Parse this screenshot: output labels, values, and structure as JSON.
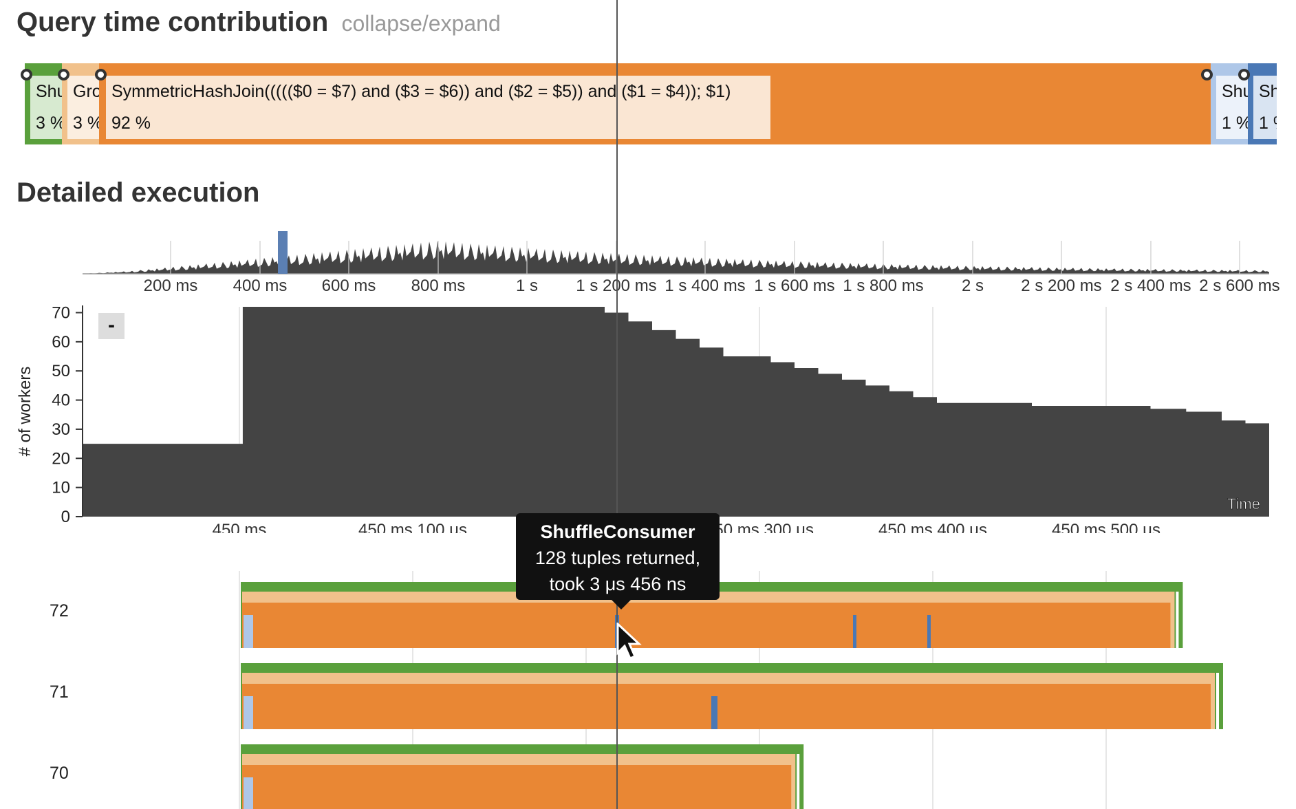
{
  "headings": {
    "contribution": "Query time contribution",
    "toggle": "collapse/expand",
    "detailed": "Detailed execution"
  },
  "contribution": [
    {
      "label": "Shu",
      "pct": "3 %",
      "color": "#5aa03c",
      "bg": "#d7ead0",
      "share": 3
    },
    {
      "label": "Gro",
      "pct": "3 %",
      "color": "#f1c18b",
      "bg": "#fbeee0",
      "share": 3
    },
    {
      "label": "SymmetricHashJoin((((($0 = $7) and ($3 = $6)) and ($2 = $5)) and ($1 = $4)); $1)",
      "pct": "92 %",
      "color": "#e98734",
      "bg": "#fae6d3",
      "share": 92
    },
    {
      "label": "Shu",
      "pct": "1 %",
      "color": "#aec7e8",
      "bg": "#ecf2fa",
      "share": 1
    },
    {
      "label": "Shu",
      "pct": "1 %",
      "color": "#4a78b5",
      "bg": "#d9e4f2",
      "share": 1
    }
  ],
  "overview": {
    "ticks": [
      "200 ms",
      "400 ms",
      "600 ms",
      "800 ms",
      "1 s",
      "1 s 200 ms",
      "1 s 400 ms",
      "1 s 600 ms",
      "1 s 800 ms",
      "2 s",
      "2 s 200 ms",
      "2 s 400 ms",
      "2 s 600 ms"
    ]
  },
  "workers_chart": {
    "ylabel": "# of workers",
    "yticks": [
      "0",
      "10",
      "20",
      "30",
      "40",
      "50",
      "60",
      "70"
    ],
    "xticks": [
      "450 ms",
      "450 ms 100 μs",
      "450 ms 300 μs",
      "450 ms 400 μs",
      "450 ms 500 μs"
    ],
    "corner_label": "Time",
    "collapse_label": "-",
    "step_points": [
      [
        0,
        25
      ],
      [
        0.132,
        25
      ],
      [
        0.135,
        72
      ],
      [
        0.42,
        72
      ],
      [
        0.44,
        70
      ],
      [
        0.46,
        67
      ],
      [
        0.48,
        64
      ],
      [
        0.5,
        61
      ],
      [
        0.52,
        58
      ],
      [
        0.54,
        55
      ],
      [
        0.56,
        55
      ],
      [
        0.58,
        53
      ],
      [
        0.6,
        51
      ],
      [
        0.62,
        49
      ],
      [
        0.64,
        47
      ],
      [
        0.66,
        45
      ],
      [
        0.68,
        43
      ],
      [
        0.7,
        41
      ],
      [
        0.72,
        39
      ],
      [
        0.74,
        39
      ],
      [
        0.78,
        39
      ],
      [
        0.8,
        38
      ],
      [
        0.84,
        38
      ],
      [
        0.88,
        38
      ],
      [
        0.9,
        37
      ],
      [
        0.93,
        36
      ],
      [
        0.96,
        33
      ],
      [
        0.98,
        32
      ],
      [
        1,
        31
      ]
    ]
  },
  "worker_rows": [
    {
      "label": "72",
      "end": 0.795
    },
    {
      "label": "71",
      "end": 0.829
    },
    {
      "label": "70",
      "end": 0.475
    }
  ],
  "tooltip": {
    "title": "ShuffleConsumer",
    "line1": "128 tuples returned,",
    "line2": "took 3 μs 456 ns"
  },
  "colors": {
    "green": "#5aa03c",
    "lightorange": "#f1c18b",
    "orange": "#e98734",
    "lightblue": "#aec7e8",
    "blue": "#4a78b5",
    "dark": "#444444"
  }
}
